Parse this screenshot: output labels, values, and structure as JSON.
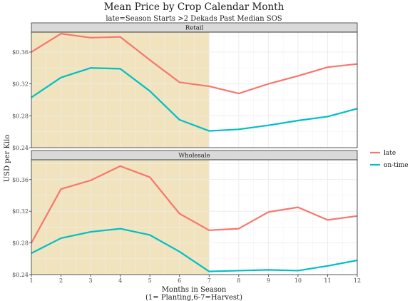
{
  "chart_data": {
    "type": "line",
    "title": "Mean Price by Crop Calendar Month",
    "subtitle": "late=Season Starts >2 Dekads Past Median SOS",
    "xlabel": "Months in Season",
    "xlabel_line2": "(1= Planting,6-7=Harvest)",
    "ylabel": "USD per Kilo",
    "x": [
      1,
      2,
      3,
      4,
      5,
      6,
      7,
      8,
      9,
      10,
      11,
      12
    ],
    "xlim": [
      1,
      12
    ],
    "ylim": [
      0.24,
      0.385
    ],
    "y_ticks": [
      0.24,
      0.28,
      0.32,
      0.36
    ],
    "y_tick_labels": [
      "$0.24",
      "$0.28",
      "$0.32",
      "$0.36"
    ],
    "x_tick_labels": [
      "1",
      "2",
      "3",
      "4",
      "5",
      "6",
      "7",
      "8",
      "9",
      "10",
      "11",
      "12"
    ],
    "shaded_region": {
      "x_start": 1,
      "x_end": 7,
      "color": "#f0e3be"
    },
    "grid": true,
    "legend_position": "right",
    "legend": [
      {
        "name": "late",
        "color": "#f8766d"
      },
      {
        "name": "on-time",
        "color": "#00bfc4"
      }
    ],
    "panels": [
      {
        "name": "Retail",
        "series": [
          {
            "name": "late",
            "values": [
              0.36,
              0.383,
              0.378,
              0.379,
              0.35,
              0.322,
              0.317,
              0.308,
              0.32,
              0.33,
              0.341,
              0.345
            ]
          },
          {
            "name": "on-time",
            "values": [
              0.303,
              0.328,
              0.34,
              0.339,
              0.311,
              0.275,
              0.261,
              0.263,
              0.268,
              0.274,
              0.279,
              0.289
            ]
          }
        ]
      },
      {
        "name": "Wholesale",
        "series": [
          {
            "name": "late",
            "values": [
              0.28,
              0.348,
              0.359,
              0.377,
              0.363,
              0.317,
              0.296,
              0.298,
              0.319,
              0.325,
              0.309,
              0.314
            ]
          },
          {
            "name": "on-time",
            "values": [
              0.267,
              0.286,
              0.294,
              0.298,
              0.29,
              0.269,
              0.244,
              0.245,
              0.246,
              0.245,
              0.251,
              0.258
            ]
          }
        ]
      }
    ]
  }
}
